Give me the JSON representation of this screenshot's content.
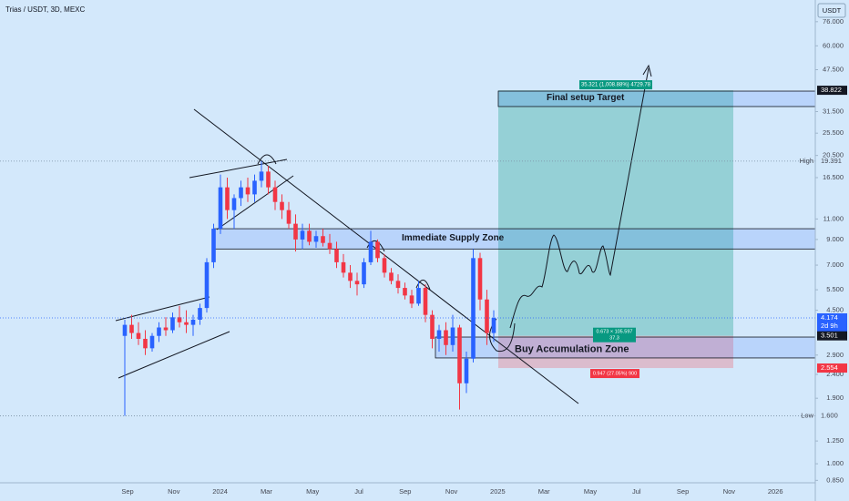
{
  "chart_data": {
    "type": "candlestick",
    "title": "Trias / USDT, 3D, MEXC",
    "currency": "USDT",
    "log_scale": true,
    "up_color": "#2962ff",
    "down_color": "#f23645",
    "ylim": [
      0.83,
      94
    ],
    "yticks": [
      {
        "value": 76,
        "label": "76.000"
      },
      {
        "value": 60,
        "label": "60.000"
      },
      {
        "value": 47.5,
        "label": "47.500"
      },
      {
        "value": 31.5,
        "label": "31.500"
      },
      {
        "value": 25.5,
        "label": "25.500"
      },
      {
        "value": 20.5,
        "label": "20.500"
      },
      {
        "value": 16.5,
        "label": "16.500"
      },
      {
        "value": 11,
        "label": "11.000"
      },
      {
        "value": 9,
        "label": "9.000"
      },
      {
        "value": 7,
        "label": "7.000"
      },
      {
        "value": 5.5,
        "label": "5.500"
      },
      {
        "value": 4.5,
        "label": "4.500"
      },
      {
        "value": 2.9,
        "label": "2.900"
      },
      {
        "value": 2.4,
        "label": "2.400"
      },
      {
        "value": 1.9,
        "label": "1.900"
      },
      {
        "value": 1.25,
        "label": "1.250"
      },
      {
        "value": 1,
        "label": "1.000"
      },
      {
        "value": 0.85,
        "label": "0.850"
      }
    ],
    "categories": [
      "Sep",
      "Nov",
      "2024",
      "Mar",
      "May",
      "Jul",
      "Sep",
      "Nov",
      "2025",
      "Mar",
      "May",
      "Jul",
      "Sep",
      "Nov",
      "2026"
    ],
    "candles": [
      [
        3.5,
        4.1,
        1.6,
        3.9
      ],
      [
        3.9,
        4.3,
        3.4,
        3.6
      ],
      [
        3.6,
        4.0,
        3.2,
        3.4
      ],
      [
        3.4,
        3.7,
        2.9,
        3.1
      ],
      [
        3.1,
        3.6,
        3.0,
        3.5
      ],
      [
        3.5,
        4.0,
        3.3,
        3.8
      ],
      [
        3.8,
        4.2,
        3.5,
        3.7
      ],
      [
        3.7,
        4.4,
        3.6,
        4.2
      ],
      [
        4.2,
        4.7,
        3.8,
        4.0
      ],
      [
        4.0,
        4.5,
        3.6,
        3.9
      ],
      [
        3.9,
        4.3,
        3.5,
        4.1
      ],
      [
        4.1,
        4.8,
        3.9,
        4.6
      ],
      [
        4.6,
        7.5,
        4.4,
        7.2
      ],
      [
        7.2,
        10.5,
        6.8,
        10.0
      ],
      [
        10.0,
        17.0,
        9.5,
        15.0
      ],
      [
        15,
        16.5,
        11,
        12
      ],
      [
        12,
        14,
        10,
        13.5
      ],
      [
        13.5,
        16,
        12.5,
        15
      ],
      [
        15,
        16.5,
        13,
        14
      ],
      [
        14,
        17,
        13,
        16
      ],
      [
        16,
        19.4,
        15,
        17.5
      ],
      [
        17.5,
        18.5,
        14,
        15
      ],
      [
        15,
        16,
        12,
        13
      ],
      [
        13,
        14,
        11,
        12
      ],
      [
        12,
        13,
        10,
        10.5
      ],
      [
        10.5,
        11.5,
        8,
        9
      ],
      [
        9,
        10.5,
        8.2,
        9.8
      ],
      [
        9.8,
        10.5,
        8.5,
        8.8
      ],
      [
        8.8,
        9.8,
        8.3,
        9.3
      ],
      [
        9.3,
        10,
        8.4,
        8.7
      ],
      [
        8.7,
        9.5,
        7.8,
        8.2
      ],
      [
        8.2,
        8.8,
        6.8,
        7.2
      ],
      [
        7.2,
        7.8,
        6.2,
        6.5
      ],
      [
        6.5,
        7.0,
        5.6,
        6.0
      ],
      [
        6.0,
        6.5,
        5.2,
        5.8
      ],
      [
        5.8,
        7.5,
        5.6,
        7.2
      ],
      [
        7.2,
        9.8,
        7.0,
        8.8
      ],
      [
        8.8,
        9.0,
        7.2,
        7.5
      ],
      [
        7.5,
        7.8,
        6.2,
        6.5
      ],
      [
        6.5,
        6.8,
        5.8,
        6.0
      ],
      [
        6.0,
        6.4,
        5.3,
        5.6
      ],
      [
        5.6,
        5.9,
        5.0,
        5.2
      ],
      [
        5.2,
        5.5,
        4.6,
        4.8
      ],
      [
        4.8,
        6.0,
        4.7,
        5.6
      ],
      [
        5.6,
        5.8,
        4.0,
        4.3
      ],
      [
        4.3,
        4.5,
        3.1,
        3.4
      ],
      [
        3.4,
        3.9,
        3.0,
        3.7
      ],
      [
        3.7,
        4.0,
        2.9,
        3.2
      ],
      [
        3.2,
        4.3,
        3.0,
        3.8
      ],
      [
        3.8,
        3.9,
        1.7,
        2.2
      ],
      [
        2.2,
        3.0,
        2.0,
        2.8
      ],
      [
        2.8,
        8.2,
        2.7,
        7.5
      ],
      [
        7.5,
        7.9,
        4.5,
        5.0
      ],
      [
        5.0,
        5.5,
        3.2,
        3.6
      ],
      [
        3.6,
        4.5,
        3.3,
        4.174
      ]
    ],
    "markers": [
      {
        "value": 38.822,
        "color": "#131722"
      },
      {
        "value": 19.391,
        "tag": "High"
      },
      {
        "value": 4.174,
        "color": "#2962ff",
        "countdown": "2d 9h"
      },
      {
        "value": 3.501,
        "color": "#131722"
      },
      {
        "value": 2.554,
        "color": "#f23645"
      },
      {
        "value": 1.6,
        "label": "1.600",
        "tag": "Low"
      }
    ],
    "zones": [
      {
        "label": "Final setup Target",
        "top": 38.5,
        "bottom": 33.1,
        "color": "#131722"
      },
      {
        "label": "Immediate Supply Zone",
        "top": 10.0,
        "bottom": 8.2,
        "color": "#131722"
      },
      {
        "label": "Buy Accumulation Zone",
        "top": 3.46,
        "bottom": 2.82,
        "color": "#3f3fd6"
      }
    ],
    "position": {
      "target": 38.822,
      "entry": 3.501,
      "stop": 2.554,
      "target_label": "35.321 (1,008.88%) 4729.78",
      "entry_label": [
        "0.673 × 105.597",
        "37.3"
      ],
      "stop_label": "0.947 (27.05%) 900"
    }
  }
}
